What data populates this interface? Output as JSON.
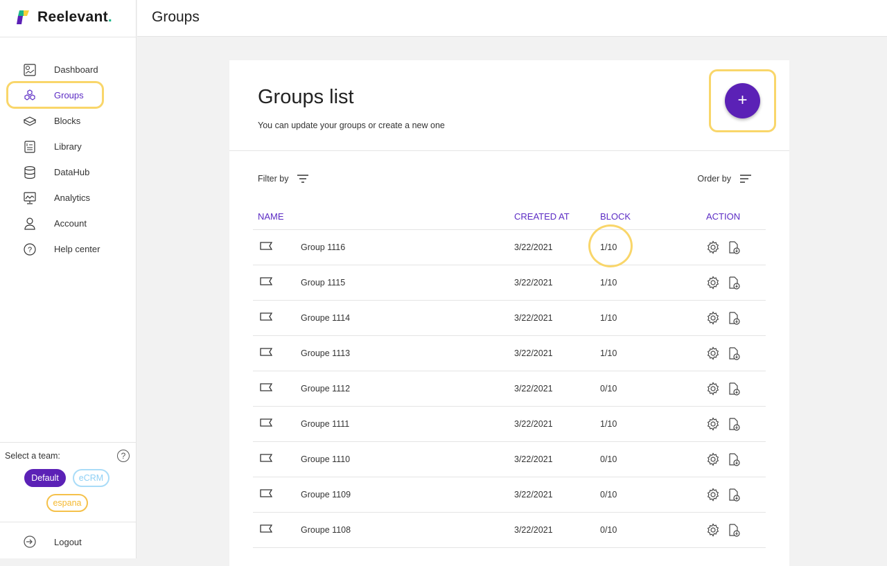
{
  "brand": {
    "name": "Reelevant",
    "dot": "."
  },
  "sidebar": {
    "items": [
      {
        "label": "Dashboard",
        "icon": "dashboard-icon"
      },
      {
        "label": "Groups",
        "icon": "groups-icon",
        "active": true
      },
      {
        "label": "Blocks",
        "icon": "blocks-icon"
      },
      {
        "label": "Library",
        "icon": "library-icon"
      },
      {
        "label": "DataHub",
        "icon": "database-icon"
      },
      {
        "label": "Analytics",
        "icon": "analytics-icon"
      },
      {
        "label": "Account",
        "icon": "account-icon"
      },
      {
        "label": "Help center",
        "icon": "help-icon"
      }
    ],
    "team_label": "Select a team:",
    "help": "?",
    "teams": [
      {
        "label": "Default",
        "color": "#5b21b6",
        "selected": true
      },
      {
        "label": "eCRM",
        "color": "#8fd0f5"
      },
      {
        "label": "espana",
        "color": "#f5b82e"
      }
    ],
    "logout": "Logout"
  },
  "header": {
    "title": "Groups"
  },
  "card": {
    "title": "Groups list",
    "subtitle": "You can update your groups or create a new one",
    "add_label": "+",
    "filter_label": "Filter by",
    "order_label": "Order by"
  },
  "table": {
    "columns": [
      "NAME",
      "CREATED AT",
      "BLOCK",
      "ACTION"
    ],
    "rows": [
      {
        "name": "Group 1116",
        "created": "3/22/2021",
        "block": "1/10"
      },
      {
        "name": "Group 1115",
        "created": "3/22/2021",
        "block": "1/10"
      },
      {
        "name": "Groupe 1114",
        "created": "3/22/2021",
        "block": "1/10"
      },
      {
        "name": "Groupe 1113",
        "created": "3/22/2021",
        "block": "1/10"
      },
      {
        "name": "Groupe 1112",
        "created": "3/22/2021",
        "block": "0/10"
      },
      {
        "name": "Groupe 1111",
        "created": "3/22/2021",
        "block": "1/10"
      },
      {
        "name": "Groupe 1110",
        "created": "3/22/2021",
        "block": "0/10"
      },
      {
        "name": "Groupe 1109",
        "created": "3/22/2021",
        "block": "0/10"
      },
      {
        "name": "Groupe 1108",
        "created": "3/22/2021",
        "block": "0/10"
      }
    ]
  },
  "colors": {
    "accent": "#5b21b6",
    "highlight": "#f9d66a"
  }
}
